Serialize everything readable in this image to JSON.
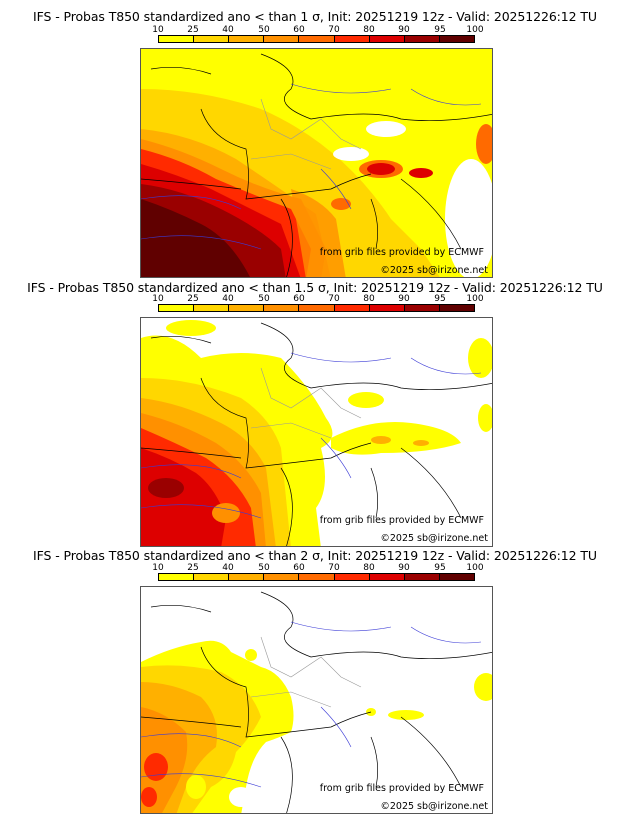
{
  "colorbar": {
    "labels": [
      "10",
      "25",
      "40",
      "50",
      "60",
      "70",
      "80",
      "90",
      "95",
      "100"
    ],
    "colors": [
      "#ffff00",
      "#ffd700",
      "#ffb000",
      "#ff9000",
      "#ff6a00",
      "#ff2a00",
      "#dd0000",
      "#9a0000",
      "#600000"
    ]
  },
  "panels": [
    {
      "title": "IFS - Probas T850  standardized ano < than 1 σ, Init: 20251219 12z - Valid: 20251226:12 TU",
      "credit": "from grib files provided by ECMWF",
      "copyright": "©2025 sb@irizone.net"
    },
    {
      "title": "IFS - Probas T850  standardized ano < than 1.5 σ, Init: 20251219 12z - Valid: 20251226:12 TU",
      "credit": "from grib files provided by ECMWF",
      "copyright": "©2025 sb@irizone.net"
    },
    {
      "title": "IFS - Probas T850  standardized ano < than 2 σ, Init: 20251219 12z - Valid: 20251226:12 TU",
      "credit": "from grib files provided by ECMWF",
      "copyright": "©2025 sb@irizone.net"
    }
  ]
}
